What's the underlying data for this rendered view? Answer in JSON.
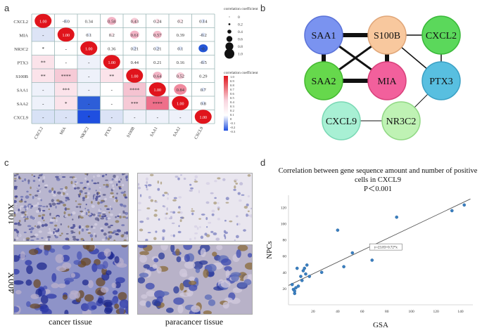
{
  "panels": {
    "a": "a",
    "b": "b",
    "c": "c",
    "d": "d"
  },
  "panel_a": {
    "genes": [
      "CXCL2",
      "MIA",
      "NR3C2",
      "PTX3",
      "S100B",
      "SAA1",
      "SAA2",
      "CXCL9"
    ],
    "upper": [
      {
        "r": 0,
        "c": 0,
        "text": "1.00",
        "color": "#e0141c",
        "size": 1.0
      },
      {
        "r": 0,
        "c": 1,
        "text": "-0.0",
        "color": "#d8e2f6",
        "size": 0.05
      },
      {
        "r": 0,
        "c": 2,
        "text": "0.34",
        "color": "#ffffff",
        "size": 0.0
      },
      {
        "r": 0,
        "c": 3,
        "text": "0.58",
        "color": "#f3b4c6",
        "size": 0.45
      },
      {
        "r": 0,
        "c": 4,
        "text": "0.43",
        "color": "#f6cad6",
        "size": 0.3
      },
      {
        "r": 0,
        "c": 5,
        "text": "0.24",
        "color": "#fbe3ea",
        "size": 0.15
      },
      {
        "r": 0,
        "c": 6,
        "text": "0.2",
        "color": "#fce9ee",
        "size": 0.12
      },
      {
        "r": 0,
        "c": 7,
        "text": "0.14",
        "color": "#dbe3f6",
        "size": 0.1
      },
      {
        "r": 1,
        "c": 1,
        "text": "1.00",
        "color": "#e0141c",
        "size": 1.0
      },
      {
        "r": 1,
        "c": 2,
        "text": "0.1",
        "color": "#e4eaf7",
        "size": 0.07
      },
      {
        "r": 1,
        "c": 3,
        "text": "0.2",
        "color": "#fce9ee",
        "size": 0.1
      },
      {
        "r": 1,
        "c": 4,
        "text": "0.61",
        "color": "#f3b4c6",
        "size": 0.45
      },
      {
        "r": 1,
        "c": 5,
        "text": "0.57",
        "color": "#f4bccb",
        "size": 0.42
      },
      {
        "r": 1,
        "c": 6,
        "text": "0.39",
        "color": "#ffffff",
        "size": 0.0
      },
      {
        "r": 1,
        "c": 7,
        "text": "-0.2",
        "color": "#dbe3f6",
        "size": 0.1
      },
      {
        "r": 2,
        "c": 2,
        "text": "1.00",
        "color": "#e0141c",
        "size": 1.0
      },
      {
        "r": 2,
        "c": 3,
        "text": "0.36",
        "color": "#ffffff",
        "size": 0.0
      },
      {
        "r": 2,
        "c": 4,
        "text": "0.21",
        "color": "#dbe3f6",
        "size": 0.12
      },
      {
        "r": 2,
        "c": 5,
        "text": "0.21",
        "color": "#dbe3f6",
        "size": 0.12
      },
      {
        "r": 2,
        "c": 6,
        "text": "0.1",
        "color": "#dbe3f6",
        "size": 0.1
      },
      {
        "r": 2,
        "c": 7,
        "text": "-0.",
        "color": "#2456d6",
        "size": 0.45
      },
      {
        "r": 3,
        "c": 3,
        "text": "1.00",
        "color": "#e0141c",
        "size": 1.0
      },
      {
        "r": 3,
        "c": 4,
        "text": "0.44",
        "color": "#ffffff",
        "size": 0.0
      },
      {
        "r": 3,
        "c": 5,
        "text": "0.21",
        "color": "#ffffff",
        "size": 0.0
      },
      {
        "r": 3,
        "c": 6,
        "text": "0.16",
        "color": "#ffffff",
        "size": 0.0
      },
      {
        "r": 3,
        "c": 7,
        "text": "-0.5",
        "color": "#dbe3f6",
        "size": 0.1
      },
      {
        "r": 4,
        "c": 4,
        "text": "1.00",
        "color": "#e0141c",
        "size": 1.0
      },
      {
        "r": 4,
        "c": 5,
        "text": "0.64",
        "color": "#f3b4c6",
        "size": 0.45
      },
      {
        "r": 4,
        "c": 6,
        "text": "0.52",
        "color": "#f6cad6",
        "size": 0.35
      },
      {
        "r": 4,
        "c": 7,
        "text": "0.29",
        "color": "#ffffff",
        "size": 0.0
      },
      {
        "r": 5,
        "c": 5,
        "text": "1.00",
        "color": "#e0141c",
        "size": 1.0
      },
      {
        "r": 5,
        "c": 6,
        "text": "0.84",
        "color": "#f08a9e",
        "size": 0.7
      },
      {
        "r": 5,
        "c": 7,
        "text": "0.7",
        "color": "#dbe3f6",
        "size": 0.08
      },
      {
        "r": 6,
        "c": 6,
        "text": "1.00",
        "color": "#e0141c",
        "size": 1.0
      },
      {
        "r": 6,
        "c": 7,
        "text": "0.8",
        "color": "#dbe3f6",
        "size": 0.08
      },
      {
        "r": 7,
        "c": 7,
        "text": "1.00",
        "color": "#e0141c",
        "size": 1.0
      }
    ],
    "lower": [
      {
        "r": 1,
        "c": 0,
        "text": "-",
        "color": "#dde4f6"
      },
      {
        "r": 2,
        "c": 0,
        "text": "*",
        "color": "#ffffff"
      },
      {
        "r": 2,
        "c": 1,
        "text": "-",
        "color": "#ffffff"
      },
      {
        "r": 3,
        "c": 0,
        "text": "**",
        "color": "#fbe3ea"
      },
      {
        "r": 3,
        "c": 1,
        "text": "-",
        "color": "#ffffff"
      },
      {
        "r": 3,
        "c": 2,
        "text": "-",
        "color": "#eef1fa"
      },
      {
        "r": 4,
        "c": 0,
        "text": "**",
        "color": "#fbe3ea"
      },
      {
        "r": 4,
        "c": 1,
        "text": "****",
        "color": "#f6cad6"
      },
      {
        "r": 4,
        "c": 2,
        "text": "-",
        "color": "#eef1fa"
      },
      {
        "r": 4,
        "c": 3,
        "text": "**",
        "color": "#fbe3ea"
      },
      {
        "r": 5,
        "c": 0,
        "text": "-",
        "color": "#eef1fa"
      },
      {
        "r": 5,
        "c": 1,
        "text": "***",
        "color": "#fbe3ea"
      },
      {
        "r": 5,
        "c": 2,
        "text": "-",
        "color": "#eef1fa"
      },
      {
        "r": 5,
        "c": 3,
        "text": "-",
        "color": "#ffffff"
      },
      {
        "r": 5,
        "c": 4,
        "text": "****",
        "color": "#f5c3d1"
      },
      {
        "r": 6,
        "c": 0,
        "text": "-",
        "color": "#eef1fa"
      },
      {
        "r": 6,
        "c": 1,
        "text": "*",
        "color": "#fbe3ea"
      },
      {
        "r": 6,
        "c": 2,
        "text": "-",
        "color": "#2d5ed8"
      },
      {
        "r": 6,
        "c": 3,
        "text": "-",
        "color": "#ffffff"
      },
      {
        "r": 6,
        "c": 4,
        "text": "***",
        "color": "#f6cad6"
      },
      {
        "r": 6,
        "c": 5,
        "text": "****",
        "color": "#ee6f8a"
      },
      {
        "r": 7,
        "c": 0,
        "text": "-",
        "color": "#d8e2f6"
      },
      {
        "r": 7,
        "c": 1,
        "text": "-",
        "color": "#dbe3f6"
      },
      {
        "r": 7,
        "c": 2,
        "text": "*",
        "color": "#1f4fe0"
      },
      {
        "r": 7,
        "c": 3,
        "text": "-",
        "color": "#dbe3f6"
      },
      {
        "r": 7,
        "c": 4,
        "text": "-",
        "color": "#eef1fa"
      },
      {
        "r": 7,
        "c": 5,
        "text": "-",
        "color": "#eef1fa"
      },
      {
        "r": 7,
        "c": 6,
        "text": "-",
        "color": "#eef1fa"
      }
    ],
    "size_legend": {
      "title": "correlation coefficient",
      "labels": [
        "0",
        "0.2",
        "0.4",
        "0.6",
        "0.8",
        "1.0"
      ]
    },
    "color_legend": {
      "title": "correlation coefficient",
      "labels": [
        "1.0",
        "0.9",
        "0.8",
        "0.7",
        "0.6",
        "0.5",
        "0.4",
        "0.3",
        "0.2",
        "0.1",
        "0",
        "-0.1",
        "-0.2",
        "-0.3"
      ]
    }
  },
  "panel_b": {
    "nodes": [
      {
        "id": "SAA1",
        "label": "SAA1",
        "fill": "#7a93f0",
        "stroke": "#5a72d8"
      },
      {
        "id": "S100B",
        "label": "S100B",
        "fill": "#f8c89e",
        "stroke": "#e0a678"
      },
      {
        "id": "CXCL2",
        "label": "CXCL2",
        "fill": "#5bd85b",
        "stroke": "#38b838"
      },
      {
        "id": "SAA2",
        "label": "SAA2",
        "fill": "#66d84c",
        "stroke": "#44b830"
      },
      {
        "id": "MIA",
        "label": "MIA",
        "fill": "#f2609c",
        "stroke": "#d8407a"
      },
      {
        "id": "PTX3",
        "label": "PTX3",
        "fill": "#58bfe0",
        "stroke": "#3aa0c4"
      },
      {
        "id": "CXCL9",
        "label": "CXCL9",
        "fill": "#a8f0d4",
        "stroke": "#7ad8b4"
      },
      {
        "id": "NR3C2",
        "label": "NR3C2",
        "fill": "#bff2b4",
        "stroke": "#90d884"
      }
    ],
    "edges": [
      {
        "a": "SAA1",
        "b": "S100B",
        "w": 6
      },
      {
        "a": "SAA1",
        "b": "SAA2",
        "w": 6
      },
      {
        "a": "SAA2",
        "b": "MIA",
        "w": 6
      },
      {
        "a": "S100B",
        "b": "MIA",
        "w": 6
      },
      {
        "a": "SAA1",
        "b": "MIA",
        "w": 3
      },
      {
        "a": "S100B",
        "b": "SAA2",
        "w": 3
      },
      {
        "a": "S100B",
        "b": "CXCL2",
        "w": 1.5
      },
      {
        "a": "S100B",
        "b": "PTX3",
        "w": 1.5
      },
      {
        "a": "CXCL2",
        "b": "PTX3",
        "w": 1.5
      },
      {
        "a": "PTX3",
        "b": "NR3C2",
        "w": 1
      },
      {
        "a": "CXCL9",
        "b": "NR3C2",
        "w": 1
      }
    ]
  },
  "panel_c": {
    "magnifications": [
      "100X",
      "400X"
    ],
    "captions": [
      "cancer tissue",
      "paracancer tissue"
    ]
  },
  "chart_data": {
    "type": "scatter",
    "title": "Correlation between gene sequence amount and number of positive cells in CXCL9",
    "subtitle": "P＜0.001",
    "xlabel": "GSA",
    "ylabel": "NPCs",
    "xlim": [
      0,
      150
    ],
    "ylim": [
      0,
      135
    ],
    "xticks": [
      "20",
      "40",
      "60",
      "80",
      "100",
      "120",
      "140"
    ],
    "xtick_values": [
      20,
      40,
      60,
      80,
      100,
      120,
      140
    ],
    "yticks": [
      "20",
      "40",
      "60",
      "80",
      "100",
      "120"
    ],
    "ytick_values": [
      20,
      40,
      60,
      80,
      100,
      120
    ],
    "x": [
      3,
      4,
      5,
      5,
      6,
      7,
      8,
      10,
      11,
      12,
      13,
      14,
      15,
      17,
      27,
      40,
      45,
      52,
      68,
      88,
      133,
      143
    ],
    "y": [
      25,
      19,
      14,
      17,
      21,
      45,
      23,
      35,
      30,
      42,
      45,
      38,
      49,
      35,
      40,
      92,
      47,
      64,
      55,
      108,
      116,
      123
    ],
    "fit_label": "y=23.83+0.72*x",
    "colors": {
      "point": "#3a7fc0",
      "line": "#555555"
    }
  }
}
